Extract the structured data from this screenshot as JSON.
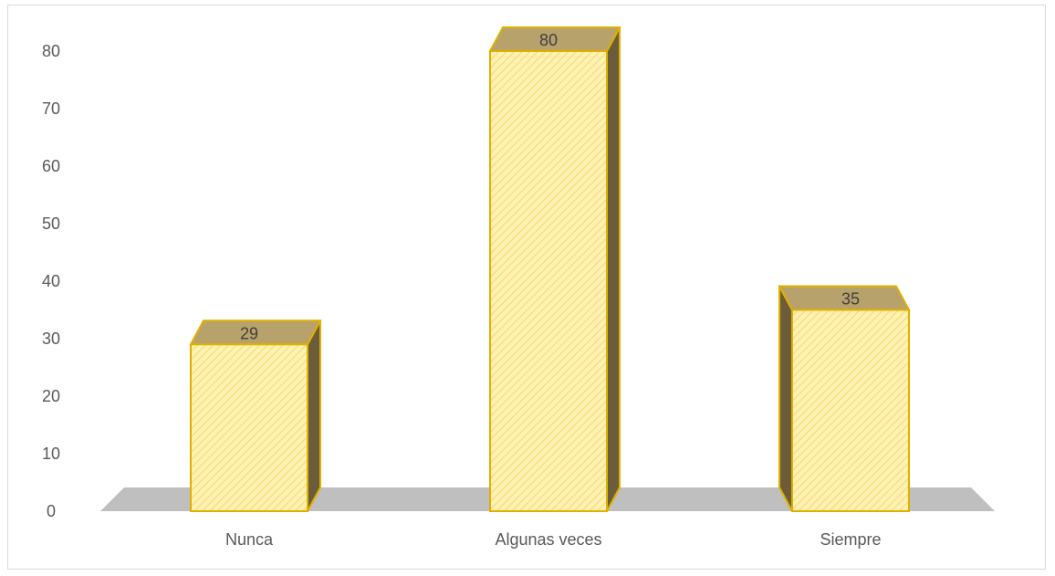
{
  "chart_data": {
    "type": "bar",
    "title": "",
    "xlabel": "",
    "ylabel": "",
    "categories": [
      "Nunca",
      "Algunas veces",
      "Siempre"
    ],
    "values": [
      29,
      80,
      35
    ],
    "data_labels": [
      "29",
      "80",
      "35"
    ],
    "ylim": [
      0,
      80
    ],
    "yticks": [
      0,
      10,
      20,
      30,
      40,
      50,
      60,
      70,
      80
    ],
    "grid": false,
    "legend": "none",
    "style": "3d-column",
    "colors": {
      "bar_fill": "#fff2b3",
      "bar_hatch": "#f4d66a",
      "bar_stroke": "#e0b000",
      "bar_top": "#b8a26b",
      "bar_side": "#6b5d3a",
      "floor": "#bfbfbf",
      "text": "#595959"
    }
  }
}
